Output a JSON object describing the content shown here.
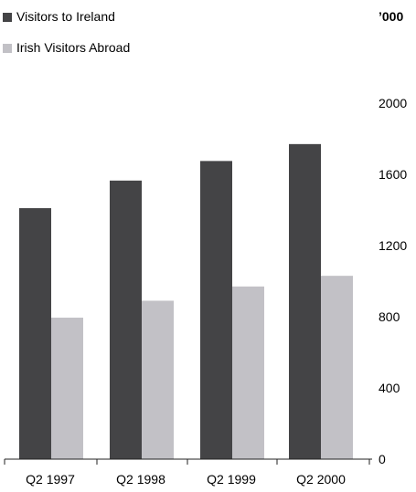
{
  "chart_data": {
    "type": "bar",
    "categories": [
      "Q2 1997",
      "Q2 1998",
      "Q2 1999",
      "Q2 2000"
    ],
    "series": [
      {
        "name": "Visitors to Ireland",
        "color": "#444446",
        "values": [
          1410,
          1565,
          1675,
          1770
        ]
      },
      {
        "name": "Irish Visitors Abroad",
        "color": "#c2c1c6",
        "values": [
          795,
          890,
          970,
          1030
        ]
      }
    ],
    "y_unit": "’000",
    "yticks": [
      "0",
      "400",
      "800",
      "1200",
      "1600",
      "2000"
    ],
    "ylim": [
      0,
      2000
    ],
    "grid": false,
    "legend_position": "top-left",
    "y_axis_position": "right"
  }
}
